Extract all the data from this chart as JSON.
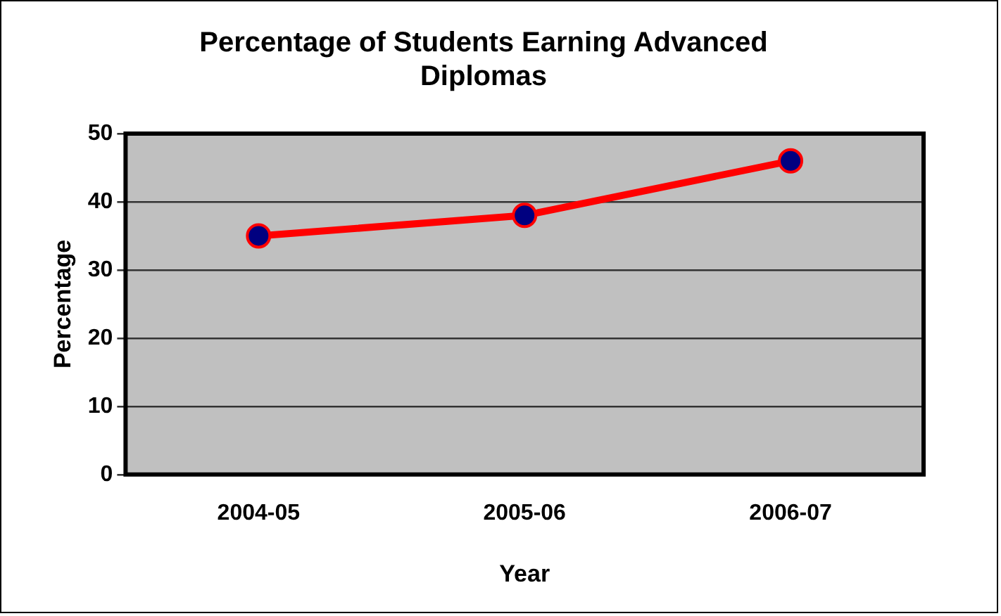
{
  "chart_data": {
    "type": "line",
    "title": "Percentage of Students Earning Advanced Diplomas",
    "xlabel": "Year",
    "ylabel": "Percentage",
    "categories": [
      "2004-05",
      "2005-06",
      "2006-07"
    ],
    "series": [
      {
        "color": "#ff0000",
        "values": [
          35,
          38,
          46
        ]
      }
    ],
    "ylim": [
      0,
      50
    ],
    "yticks": [
      0,
      10,
      20,
      30,
      40,
      50
    ],
    "grid": "y",
    "marker": "circle",
    "line_style": "solid",
    "legend": false
  }
}
